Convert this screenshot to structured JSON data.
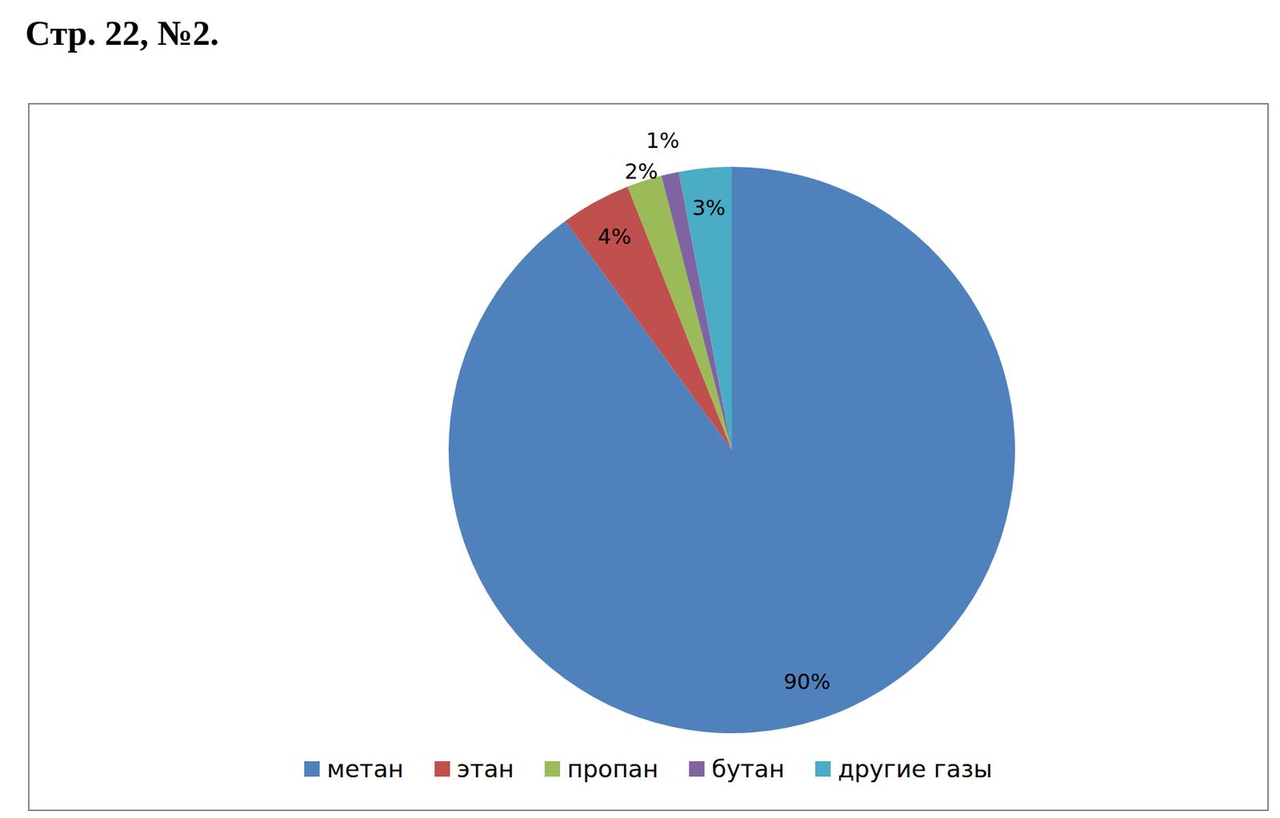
{
  "chart_data": {
    "type": "pie",
    "title": "Стр. 22, №2.",
    "categories": [
      "метан",
      "этан",
      "пропан",
      "бутан",
      "другие газы"
    ],
    "values": [
      90,
      4,
      2,
      1,
      3
    ],
    "value_labels": [
      "90%",
      "4%",
      "2%",
      "1%",
      "3%"
    ],
    "colors": [
      "#4f81bd",
      "#c0504d",
      "#9bbb59",
      "#8064a2",
      "#4bacc6"
    ],
    "data_labels": true,
    "legend": "bottom"
  }
}
